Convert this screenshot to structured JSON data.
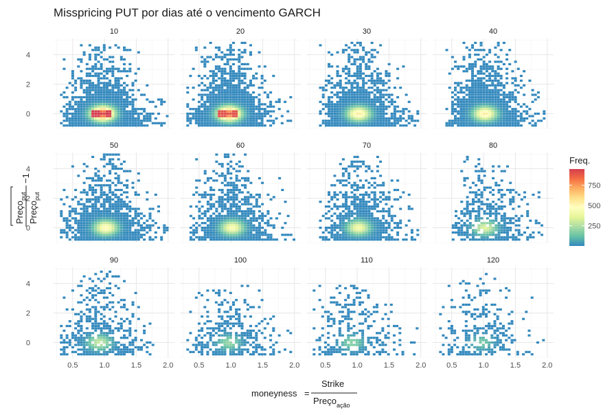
{
  "chart_data": {
    "type": "heatmap",
    "title": "Misspricing PUT por dias até o vencimento GARCH",
    "xlabel": {
      "lhs": "moneyness",
      "eq": "=",
      "num": "Strike",
      "den": "Preço",
      "den_sub": "ação"
    },
    "ylabel": {
      "num": "Preço",
      "num_sub": "put",
      "den": "Preço",
      "den_sub": "put",
      "suffix": "−1"
    },
    "facet_labels": [
      "10",
      "20",
      "30",
      "40",
      "50",
      "60",
      "70",
      "80",
      "90",
      "100",
      "110",
      "120"
    ],
    "x_ticks": [
      0.5,
      1.0,
      1.5,
      2.0
    ],
    "x_tick_labels": [
      "0.5",
      "1.0",
      "1.5",
      "2.0"
    ],
    "y_ticks": [
      0,
      2,
      4
    ],
    "y_tick_labels": [
      "0",
      "2",
      "4"
    ],
    "xlim": [
      0.2,
      2.1
    ],
    "ylim": [
      -1.0,
      5.1
    ],
    "grid": true,
    "legend": {
      "title": "Freq.",
      "position": "right",
      "ticks": [
        250,
        500,
        750
      ],
      "tick_labels": [
        "250",
        "500",
        "750"
      ],
      "range": [
        1,
        950
      ],
      "colors": [
        "#3288bd",
        "#66c2a5",
        "#abdda4",
        "#e6f598",
        "#ffffbf",
        "#fee08b",
        "#fdae61",
        "#f46d43",
        "#d53e4f"
      ]
    },
    "facets": [
      {
        "label": "10",
        "x_range": [
          0.3,
          2.0
        ],
        "center": [
          0.95,
          0.0
        ],
        "y_top": 4.8,
        "peak": 950,
        "density": 1.0
      },
      {
        "label": "20",
        "x_range": [
          0.3,
          2.0
        ],
        "center": [
          0.95,
          0.0
        ],
        "y_top": 4.9,
        "peak": 900,
        "density": 1.0
      },
      {
        "label": "30",
        "x_range": [
          0.4,
          1.95
        ],
        "center": [
          1.0,
          0.0
        ],
        "y_top": 4.9,
        "peak": 550,
        "density": 0.95
      },
      {
        "label": "40",
        "x_range": [
          0.4,
          1.95
        ],
        "center": [
          1.0,
          0.0
        ],
        "y_top": 4.9,
        "peak": 550,
        "density": 0.95
      },
      {
        "label": "50",
        "x_range": [
          0.3,
          2.0
        ],
        "center": [
          1.0,
          0.0
        ],
        "y_top": 5.0,
        "peak": 500,
        "density": 0.85
      },
      {
        "label": "60",
        "x_range": [
          0.35,
          2.0
        ],
        "center": [
          1.0,
          0.0
        ],
        "y_top": 5.0,
        "peak": 450,
        "density": 0.8
      },
      {
        "label": "70",
        "x_range": [
          0.4,
          1.95
        ],
        "center": [
          1.0,
          0.0
        ],
        "y_top": 4.9,
        "peak": 420,
        "density": 0.75
      },
      {
        "label": "80",
        "x_range": [
          0.5,
          1.9
        ],
        "center": [
          1.0,
          0.0
        ],
        "y_top": 4.9,
        "peak": 350,
        "density": 0.55
      },
      {
        "label": "90",
        "x_range": [
          0.3,
          1.95
        ],
        "center": [
          0.9,
          0.0
        ],
        "y_top": 4.9,
        "peak": 300,
        "density": 0.55
      },
      {
        "label": "100",
        "x_range": [
          0.3,
          2.0
        ],
        "center": [
          0.95,
          0.0
        ],
        "y_top": 4.0,
        "peak": 200,
        "density": 0.45
      },
      {
        "label": "110",
        "x_range": [
          0.3,
          1.95
        ],
        "center": [
          0.9,
          0.0
        ],
        "y_top": 4.0,
        "peak": 180,
        "density": 0.4
      },
      {
        "label": "120",
        "x_range": [
          0.3,
          1.95
        ],
        "center": [
          0.95,
          0.0
        ],
        "y_top": 4.8,
        "peak": 150,
        "density": 0.35
      }
    ]
  }
}
